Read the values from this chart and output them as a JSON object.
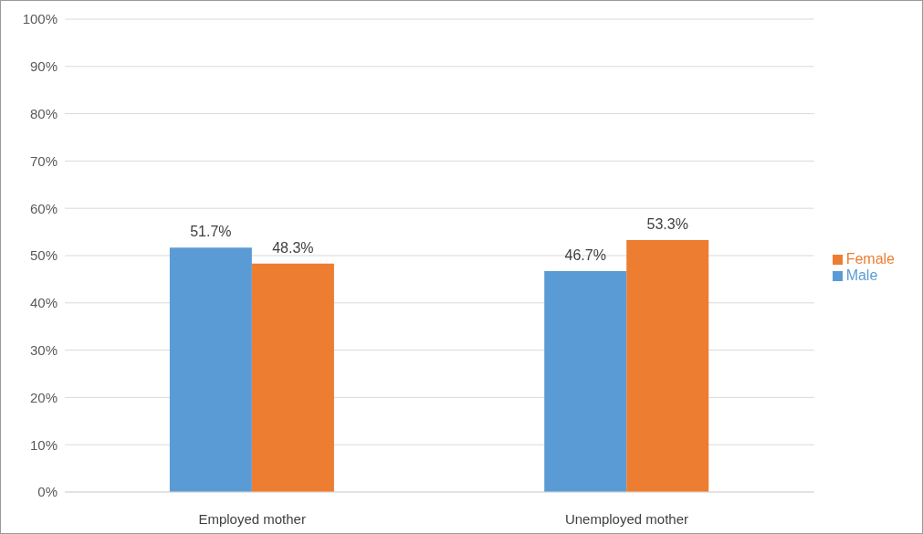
{
  "chart_data": {
    "type": "bar",
    "categories": [
      "Employed mother",
      "Unemployed mother"
    ],
    "series": [
      {
        "name": "Male",
        "color": "#5b9bd5",
        "values": [
          51.7,
          46.7
        ],
        "value_labels": [
          "51.7%",
          "46.7%"
        ]
      },
      {
        "name": "Female",
        "color": "#ed7d31",
        "values": [
          48.3,
          53.3
        ],
        "value_labels": [
          "48.3%",
          "53.3%"
        ]
      }
    ],
    "ylim": [
      0,
      100
    ],
    "yticks": [
      {
        "value": 0,
        "label": "0%"
      },
      {
        "value": 10,
        "label": "10%"
      },
      {
        "value": 20,
        "label": "20%"
      },
      {
        "value": 30,
        "label": "30%"
      },
      {
        "value": 40,
        "label": "40%"
      },
      {
        "value": 50,
        "label": "50%"
      },
      {
        "value": 60,
        "label": "60%"
      },
      {
        "value": 70,
        "label": "70%"
      },
      {
        "value": 80,
        "label": "80%"
      },
      {
        "value": 90,
        "label": "90%"
      },
      {
        "value": 100,
        "label": "100%"
      }
    ],
    "grid": "y",
    "legend": "right"
  }
}
